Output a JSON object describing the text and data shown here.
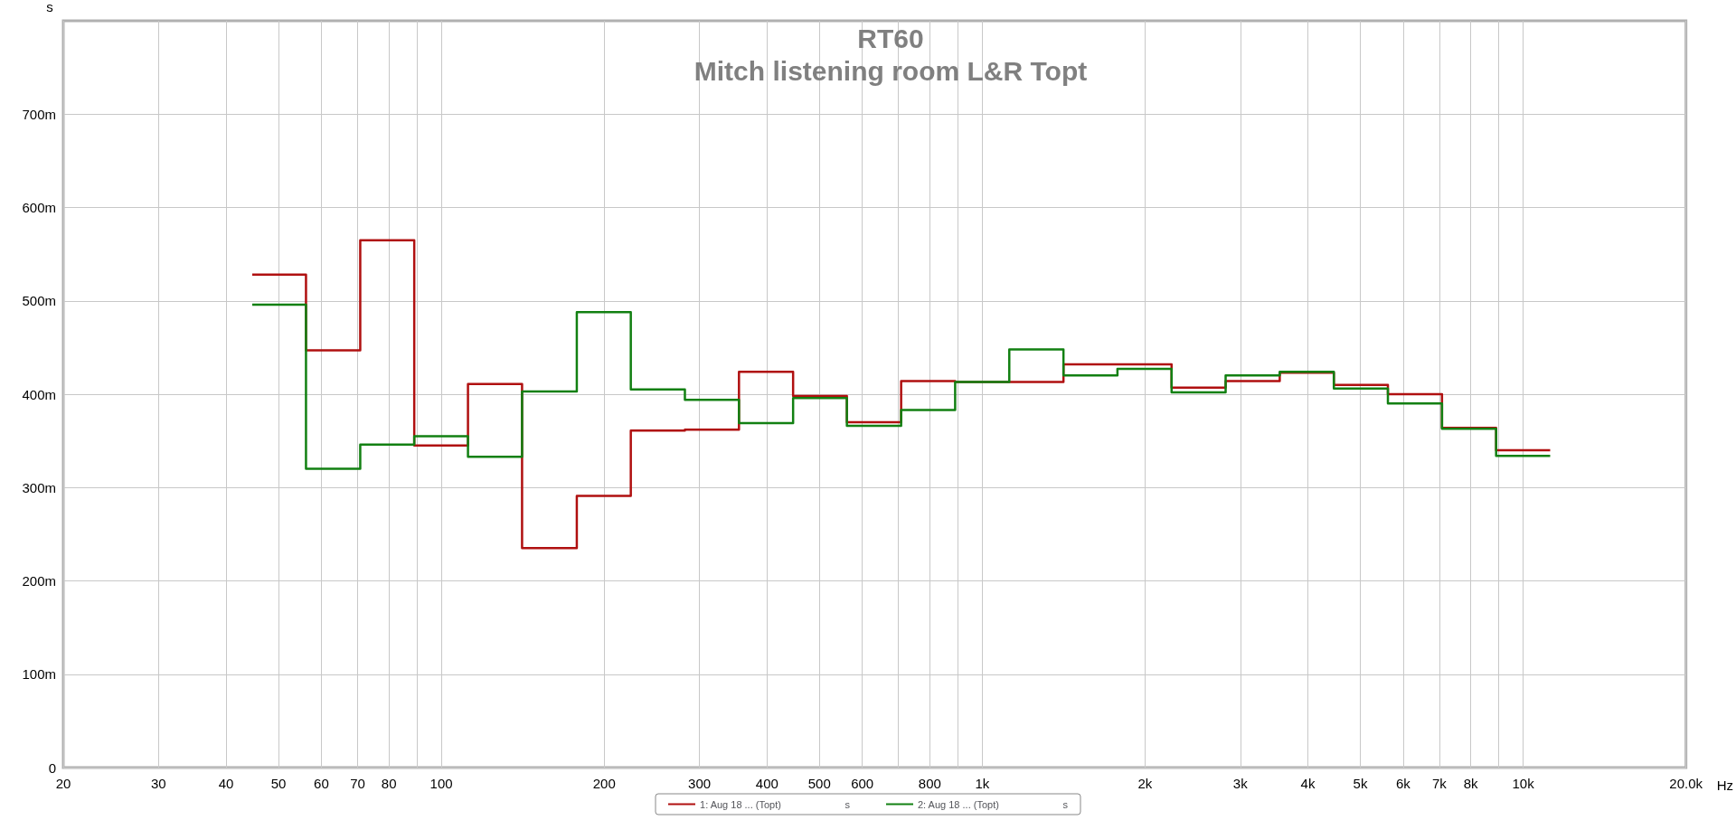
{
  "chart_data": {
    "type": "step",
    "title": "RT60",
    "subtitle": "Mitch listening room L&R Topt",
    "xlabel": "Hz",
    "ylabel": "s",
    "x": [
      44.7,
      56.2,
      70.8,
      89.1,
      112,
      141,
      178,
      224,
      282,
      355,
      447,
      562,
      708,
      891,
      1122,
      1413,
      1778,
      2239,
      2818,
      3548,
      4467,
      5623,
      7079,
      8913,
      11220
    ],
    "series": [
      {
        "name": "1: Aug 18 ... (Topt)",
        "color": "#b01010",
        "values": [
          528,
          447,
          565,
          345,
          411,
          235,
          291,
          361,
          362,
          424,
          398,
          370,
          414,
          413,
          413,
          432,
          432,
          407,
          414,
          423,
          410,
          400,
          364,
          340,
          340
        ]
      },
      {
        "name": "2: Aug 18 ... (Topt)",
        "color": "#128012",
        "values": [
          496,
          320,
          346,
          355,
          333,
          403,
          488,
          405,
          394,
          369,
          396,
          366,
          383,
          413,
          448,
          420,
          427,
          402,
          420,
          424,
          406,
          390,
          363,
          334,
          334
        ]
      }
    ],
    "log": "x",
    "xlim": [
      20,
      20000
    ],
    "xticks": [
      20,
      30,
      40,
      50,
      60,
      70,
      80,
      {
        "value": 90,
        "label": null
      },
      100,
      200,
      300,
      400,
      500,
      600,
      {
        "value": 700,
        "label": null
      },
      800,
      {
        "value": 900,
        "label": null
      },
      {
        "value": 1000,
        "label": "1k"
      },
      {
        "value": 2000,
        "label": "2k"
      },
      {
        "value": 3000,
        "label": "3k"
      },
      {
        "value": 4000,
        "label": "4k"
      },
      {
        "value": 5000,
        "label": "5k"
      },
      {
        "value": 6000,
        "label": "6k"
      },
      {
        "value": 7000,
        "label": "7k"
      },
      {
        "value": 8000,
        "label": "8k"
      },
      {
        "value": 9000,
        "label": null
      },
      {
        "value": 10000,
        "label": "10k"
      },
      {
        "value": 20000,
        "label": "20.0k"
      }
    ],
    "ylim": [
      0,
      800
    ],
    "yticks": [
      0,
      {
        "value": 100,
        "label": "100m"
      },
      {
        "value": 200,
        "label": "200m"
      },
      {
        "value": 300,
        "label": "300m"
      },
      {
        "value": 400,
        "label": "400m"
      },
      {
        "value": 500,
        "label": "500m"
      },
      {
        "value": 600,
        "label": "600m"
      },
      {
        "value": 700,
        "label": "700m"
      }
    ],
    "grid": true,
    "legend": "bottom",
    "marker": "none",
    "line_style": "solid"
  }
}
